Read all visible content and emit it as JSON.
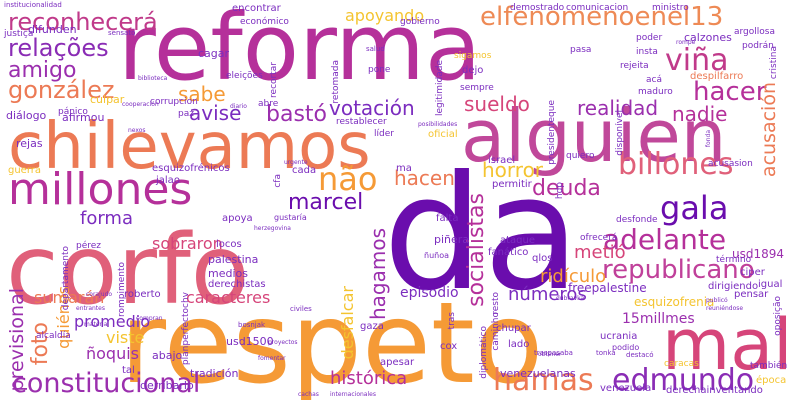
{
  "palette": {
    "deep_purple": "#6a0dad",
    "purple": "#7b2cbf",
    "magenta": "#b5309a",
    "pink": "#d6457a",
    "salmon": "#ec7a55",
    "orange": "#f59a36",
    "yellow": "#f4c430"
  },
  "words": [
    {
      "text": "da",
      "color": "#6a0dad"
    },
    {
      "text": "reforma",
      "color": "#b5309a"
    },
    {
      "text": "respeto",
      "color": "#f59a36"
    },
    {
      "text": "corfo",
      "color": "#e0607a"
    },
    {
      "text": "alguien",
      "color": "#c0489a"
    },
    {
      "text": "chilevamos",
      "color": "#ec7a55"
    },
    {
      "text": "mal",
      "color": "#d6457a"
    },
    {
      "text": "millones",
      "color": "#b5309a"
    },
    {
      "text": "constitucional",
      "color": "#9b2fae"
    },
    {
      "text": "edmundo",
      "color": "#8a2cb5"
    },
    {
      "text": "elfenomenoenel13",
      "color": "#ee8a55"
    },
    {
      "text": "reconhecerá",
      "color": "#c03a8a"
    },
    {
      "text": "republicano",
      "color": "#c0409a"
    },
    {
      "text": "billones",
      "color": "#e0607a"
    },
    {
      "text": "adelante",
      "color": "#b5309a"
    },
    {
      "text": "hamas",
      "color": "#ec7a55"
    },
    {
      "text": "gala",
      "color": "#6a0dad"
    },
    {
      "text": "viña",
      "color": "#c03a8a"
    },
    {
      "text": "hacer",
      "color": "#b5309a"
    },
    {
      "text": "relações",
      "color": "#8a2cb5"
    },
    {
      "text": "gonzález",
      "color": "#ec7a55"
    },
    {
      "text": "não",
      "color": "#f59a36"
    },
    {
      "text": "votación",
      "color": "#7b2cbf"
    },
    {
      "text": "avise",
      "color": "#7b2cbf"
    },
    {
      "text": "bastó",
      "color": "#9b2fae"
    },
    {
      "text": "sueldo",
      "color": "#d6457a"
    },
    {
      "text": "realidad",
      "color": "#9b2fae"
    },
    {
      "text": "nadie",
      "color": "#b5309a"
    },
    {
      "text": "acusación",
      "color": "#ec7a55"
    },
    {
      "text": "sabe",
      "color": "#f59a36"
    },
    {
      "text": "amigo",
      "color": "#9b2fae"
    },
    {
      "text": "apoyando",
      "color": "#f4c430"
    },
    {
      "text": "marcel",
      "color": "#6a0dad"
    },
    {
      "text": "hacen",
      "color": "#ec7a55"
    },
    {
      "text": "horror",
      "color": "#f4c430"
    },
    {
      "text": "deuda",
      "color": "#b5309a"
    },
    {
      "text": "socialistas",
      "color": "#b5309a"
    },
    {
      "text": "forma",
      "color": "#7b2cbf"
    },
    {
      "text": "sobraron",
      "color": "#d6457a"
    },
    {
      "text": "hagamos",
      "color": "#9b2fae"
    },
    {
      "text": "metió",
      "color": "#d6457a"
    },
    {
      "text": "ridículo",
      "color": "#f59a36"
    },
    {
      "text": "números",
      "color": "#7b2cbf"
    },
    {
      "text": "15millmes",
      "color": "#9b2fae"
    },
    {
      "text": "histórica",
      "color": "#b5309a"
    },
    {
      "text": "caracteres",
      "color": "#d6457a"
    },
    {
      "text": "sumarán",
      "color": "#ec7a55"
    },
    {
      "text": "previsional",
      "color": "#9b2fae"
    },
    {
      "text": "foto",
      "color": "#ec7a55"
    },
    {
      "text": "quiénes",
      "color": "#f59a36"
    },
    {
      "text": "promedio",
      "color": "#7b2cbf"
    },
    {
      "text": "viste",
      "color": "#f4c430"
    },
    {
      "text": "ñoquis",
      "color": "#9b2fae"
    },
    {
      "text": "desfalcar",
      "color": "#f4c430"
    },
    {
      "text": "episodio",
      "color": "#7b2cbf"
    },
    {
      "text": "usd1894",
      "color": "#9b2fae"
    },
    {
      "text": "freepalestine",
      "color": "#7b2cbf"
    },
    {
      "text": "esquizofrenia",
      "color": "#f4c430"
    },
    {
      "text": "venezuelanas",
      "color": "#7b2cbf"
    },
    {
      "text": "cagar",
      "color": "#7b2cbf"
    },
    {
      "text": "culpar",
      "color": "#f4c430"
    },
    {
      "text": "difunden",
      "color": "#7b2cbf"
    },
    {
      "text": "afirmou",
      "color": "#7b2cbf"
    },
    {
      "text": "diálogo",
      "color": "#7b2cbf"
    },
    {
      "text": "rejas",
      "color": "#7b2cbf"
    },
    {
      "text": "guerra",
      "color": "#f4c430"
    },
    {
      "text": "esquizofrénicos",
      "color": "#7b2cbf"
    },
    {
      "text": "jalao",
      "color": "#7b2cbf"
    },
    {
      "text": "cada",
      "color": "#7b2cbf"
    },
    {
      "text": "ma",
      "color": "#7b2cbf"
    },
    {
      "text": "israel",
      "color": "#7b2cbf"
    },
    {
      "text": "permitir",
      "color": "#7b2cbf"
    },
    {
      "text": "piñera",
      "color": "#7b2cbf"
    },
    {
      "text": "ataque",
      "color": "#7b2cbf"
    },
    {
      "text": "fanático",
      "color": "#7b2cbf"
    },
    {
      "text": "falta",
      "color": "#7b2cbf"
    },
    {
      "text": "apoya",
      "color": "#7b2cbf"
    },
    {
      "text": "locos",
      "color": "#7b2cbf"
    },
    {
      "text": "palestina",
      "color": "#7b2cbf"
    },
    {
      "text": "medios",
      "color": "#7b2cbf"
    },
    {
      "text": "derechistas",
      "color": "#7b2cbf"
    },
    {
      "text": "roberto",
      "color": "#7b2cbf"
    },
    {
      "text": "tal",
      "color": "#7b2cbf"
    },
    {
      "text": "abajo",
      "color": "#7b2cbf"
    },
    {
      "text": "usd1500",
      "color": "#7b2cbf"
    },
    {
      "text": "tradición",
      "color": "#7b2cbf"
    },
    {
      "text": "derribarlo",
      "color": "#7b2cbf"
    },
    {
      "text": "gaza",
      "color": "#7b2cbf"
    },
    {
      "text": "apesar",
      "color": "#7b2cbf"
    },
    {
      "text": "cox",
      "color": "#7b2cbf"
    },
    {
      "text": "chupar",
      "color": "#7b2cbf"
    },
    {
      "text": "lado",
      "color": "#7b2cbf"
    },
    {
      "text": "ucrania",
      "color": "#7b2cbf"
    },
    {
      "text": "caracas",
      "color": "#f4c430"
    },
    {
      "text": "venezuela",
      "color": "#7b2cbf"
    },
    {
      "text": "derechainventando",
      "color": "#7b2cbf"
    },
    {
      "text": "época",
      "color": "#f4c430"
    },
    {
      "text": "también",
      "color": "#7b2cbf"
    },
    {
      "text": "ciper",
      "color": "#7b2cbf"
    },
    {
      "text": "igual",
      "color": "#7b2cbf"
    },
    {
      "text": "pensar",
      "color": "#7b2cbf"
    },
    {
      "text": "ofrecerá",
      "color": "#7b2cbf"
    },
    {
      "text": "desfonde",
      "color": "#7b2cbf"
    },
    {
      "text": "dirigiendo",
      "color": "#7b2cbf"
    },
    {
      "text": "encontrar",
      "color": "#7b2cbf"
    },
    {
      "text": "económico",
      "color": "#7b2cbf"
    },
    {
      "text": "gobierno",
      "color": "#7b2cbf"
    },
    {
      "text": "demostrado",
      "color": "#7b2cbf"
    },
    {
      "text": "comunicacion",
      "color": "#7b2cbf"
    },
    {
      "text": "ministro",
      "color": "#7b2cbf"
    },
    {
      "text": "poder",
      "color": "#7b2cbf"
    },
    {
      "text": "calzones",
      "color": "#7b2cbf"
    },
    {
      "text": "insta",
      "color": "#7b2cbf"
    },
    {
      "text": "rejeita",
      "color": "#7b2cbf"
    },
    {
      "text": "acá",
      "color": "#7b2cbf"
    },
    {
      "text": "maduro",
      "color": "#7b2cbf"
    },
    {
      "text": "despilfarro",
      "color": "#ec7a55"
    },
    {
      "text": "pasa",
      "color": "#7b2cbf"
    },
    {
      "text": "sigamos",
      "color": "#f4c430"
    },
    {
      "text": "pone",
      "color": "#7b2cbf"
    },
    {
      "text": "dejo",
      "color": "#7b2cbf"
    },
    {
      "text": "sempre",
      "color": "#7b2cbf"
    },
    {
      "text": "eleições",
      "color": "#7b2cbf"
    },
    {
      "text": "corrupcion",
      "color": "#7b2cbf"
    },
    {
      "text": "paz",
      "color": "#7b2cbf"
    },
    {
      "text": "recortar",
      "color": "#7b2cbf"
    },
    {
      "text": "abre",
      "color": "#7b2cbf"
    },
    {
      "text": "restablecer",
      "color": "#7b2cbf"
    },
    {
      "text": "líder",
      "color": "#7b2cbf"
    },
    {
      "text": "oficial",
      "color": "#f4c430"
    },
    {
      "text": "qlos",
      "color": "#7b2cbf"
    },
    {
      "text": "pánico",
      "color": "#7b2cbf"
    },
    {
      "text": "justiça",
      "color": "#7b2cbf"
    },
    {
      "text": "institucionalidad",
      "color": "#7b2cbf"
    },
    {
      "text": "acusasion",
      "color": "#7b2cbf"
    },
    {
      "text": "quiero",
      "color": "#7b2cbf"
    },
    {
      "text": "presidenteque",
      "color": "#7b2cbf"
    },
    {
      "text": "podrán",
      "color": "#7b2cbf"
    },
    {
      "text": "cristina",
      "color": "#7b2cbf"
    },
    {
      "text": "argollosa",
      "color": "#7b2cbf"
    },
    {
      "text": "pérez",
      "color": "#7b2cbf"
    },
    {
      "text": "alcaldía",
      "color": "#7b2cbf"
    },
    {
      "text": "departamento",
      "color": "#7b2cbf"
    },
    {
      "text": "rompimento",
      "color": "#7b2cbf"
    },
    {
      "text": "planperfectochv",
      "color": "#7b2cbf"
    },
    {
      "text": "cfa",
      "color": "#7b2cbf"
    },
    {
      "text": "hdp",
      "color": "#7b2cbf"
    },
    {
      "text": "término",
      "color": "#7b2cbf"
    },
    {
      "text": "tras",
      "color": "#7b2cbf"
    },
    {
      "text": "resto",
      "color": "#7b2cbf"
    },
    {
      "text": "retomada",
      "color": "#7b2cbf"
    },
    {
      "text": "legitimidade",
      "color": "#7b2cbf"
    },
    {
      "text": "disponível",
      "color": "#7b2cbf"
    },
    {
      "text": "oposição",
      "color": "#7b2cbf"
    },
    {
      "text": "diplomático",
      "color": "#7b2cbf"
    },
    {
      "text": "caminho",
      "color": "#7b2cbf"
    },
    {
      "text": "salud",
      "color": "#7b2cbf"
    },
    {
      "text": "sensato",
      "color": "#7b2cbf"
    },
    {
      "text": "traspasaba",
      "color": "#7b2cbf"
    },
    {
      "text": "tonka",
      "color": "#7b2cbf"
    },
    {
      "text": "podido",
      "color": "#7b2cbf"
    },
    {
      "text": "gustaría",
      "color": "#7b2cbf"
    },
    {
      "text": "ñuñoa",
      "color": "#7b2cbf"
    },
    {
      "text": "civiles",
      "color": "#7b2cbf"
    },
    {
      "text": "bosnjak",
      "color": "#7b2cbf"
    },
    {
      "text": "cachas",
      "color": "#7b2cbf"
    },
    {
      "text": "internacionales",
      "color": "#7b2cbf"
    },
    {
      "text": "destacó",
      "color": "#7b2cbf"
    },
    {
      "text": "nexos",
      "color": "#7b2cbf"
    },
    {
      "text": "cooperación",
      "color": "#7b2cbf"
    },
    {
      "text": "dubravka",
      "color": "#7b2cbf"
    },
    {
      "text": "publicó",
      "color": "#7b2cbf"
    },
    {
      "text": "reuniéndose",
      "color": "#7b2cbf"
    },
    {
      "text": "fonda",
      "color": "#7b2cbf"
    },
    {
      "text": "compran",
      "color": "#7b2cbf"
    },
    {
      "text": "materia",
      "color": "#7b2cbf"
    },
    {
      "text": "corajudo",
      "color": "#7b2cbf"
    },
    {
      "text": "fomentar",
      "color": "#7b2cbf"
    },
    {
      "text": "proyectos",
      "color": "#7b2cbf"
    },
    {
      "text": "obtener",
      "color": "#7b2cbf"
    },
    {
      "text": "urgente",
      "color": "#7b2cbf"
    },
    {
      "text": "herzegovina",
      "color": "#7b2cbf"
    },
    {
      "text": "posibilidades",
      "color": "#7b2cbf"
    },
    {
      "text": "rompe",
      "color": "#7b2cbf"
    },
    {
      "text": "entrantes",
      "color": "#7b2cbf"
    },
    {
      "text": "biblioteca",
      "color": "#7b2cbf"
    },
    {
      "text": "diario",
      "color": "#7b2cbf"
    }
  ]
}
